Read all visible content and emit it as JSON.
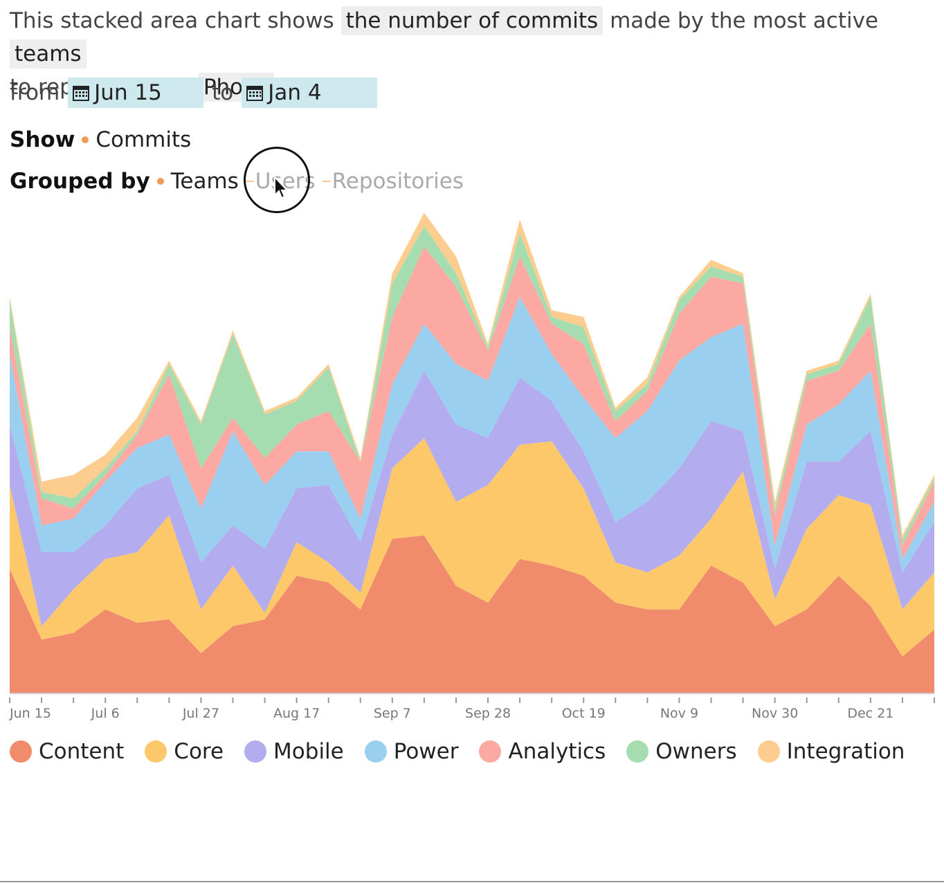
{
  "intro": {
    "prefix": "This stacked area chart shows",
    "metric_chip": "the number of commits",
    "middle": "made by the most active",
    "entity_chip": "teams",
    "to_text": "to repositories of",
    "org_chip": "Phony"
  },
  "range": {
    "from_label": "from",
    "from_value": "Jun 15",
    "to_label": "to",
    "to_value": "Jan 4",
    "calendar_icon": "calendar-icon"
  },
  "show": {
    "label": "Show",
    "option": "Commits"
  },
  "grouped_by": {
    "label": "Grouped by",
    "options": [
      "Teams",
      "Users",
      "Repositories"
    ],
    "selected": "Teams"
  },
  "chart_data": {
    "type": "area",
    "stacked": true,
    "x_tick_labels": [
      "Jun 15",
      "Jul 6",
      "Jul 27",
      "Aug 17",
      "Sep 7",
      "Sep 28",
      "Oct 19",
      "Nov 9",
      "Nov 30",
      "Dec 21"
    ],
    "x_label_weeks": [
      0,
      3,
      6,
      9,
      12,
      15,
      18,
      21,
      24,
      27
    ],
    "weeks": [
      0,
      1,
      2,
      3,
      4,
      5,
      6,
      7,
      8,
      9,
      10,
      11,
      12,
      13,
      14,
      15,
      16,
      17,
      18,
      19,
      20,
      21,
      22,
      23,
      24,
      25,
      26,
      27,
      28,
      29
    ],
    "ylim": [
      0,
      140
    ],
    "grid": false,
    "legend_position": "bottom",
    "series": [
      {
        "name": "Content",
        "color": "#f08c6b",
        "values": [
          37,
          16,
          18,
          25,
          21,
          22,
          12,
          20,
          22,
          35,
          33,
          25,
          46,
          47,
          32,
          27,
          40,
          38,
          35,
          27,
          25,
          25,
          38,
          33,
          20,
          25,
          35,
          26,
          11,
          19
        ]
      },
      {
        "name": "Core",
        "color": "#fdc86a",
        "values": [
          25,
          4,
          13,
          15,
          21,
          31,
          13,
          18,
          2,
          10,
          6,
          5,
          21,
          29,
          25,
          35,
          34,
          37,
          26,
          12,
          11,
          16,
          14,
          33,
          8,
          24,
          24,
          30,
          14,
          17
        ]
      },
      {
        "name": "Mobile",
        "color": "#b3acef",
        "values": [
          18,
          22,
          11,
          10,
          19,
          12,
          14,
          12,
          19,
          16,
          23,
          15,
          10,
          20,
          23,
          14,
          20,
          12,
          11,
          12,
          21,
          26,
          29,
          12,
          9,
          20,
          10,
          22,
          11,
          15
        ]
      },
      {
        "name": "Power",
        "color": "#9bcfef",
        "values": [
          21,
          8,
          10,
          13,
          12,
          12,
          16,
          28,
          19,
          11,
          10,
          7,
          15,
          14,
          18,
          17,
          24,
          14,
          16,
          25,
          27,
          32,
          25,
          32,
          7,
          11,
          17,
          18,
          4,
          6
        ]
      },
      {
        "name": "Analytics",
        "color": "#fda9a3",
        "values": [
          8,
          8,
          3,
          2,
          4,
          18,
          12,
          4,
          8,
          8,
          12,
          17,
          20,
          23,
          23,
          9,
          12,
          9,
          16,
          5,
          6,
          14,
          18,
          12,
          9,
          13,
          10,
          14,
          4,
          6
        ]
      },
      {
        "name": "Owners",
        "color": "#a6ddb0",
        "values": [
          8,
          2,
          3,
          2,
          1,
          3,
          13,
          25,
          13,
          7,
          13,
          0,
          10,
          6,
          4,
          1,
          7,
          2,
          5,
          3,
          2,
          4,
          3,
          2,
          2,
          2,
          2,
          8,
          2,
          1
        ]
      },
      {
        "name": "Integration",
        "color": "#fdcd8f",
        "values": [
          1,
          3,
          7,
          4,
          4,
          1,
          1,
          1,
          1,
          1,
          1,
          1,
          3,
          4,
          5,
          1,
          4,
          2,
          3,
          1,
          2,
          1,
          2,
          1,
          2,
          1,
          1,
          1,
          1,
          1
        ]
      }
    ]
  },
  "footer": {
    "cursor_focus": "Users"
  }
}
